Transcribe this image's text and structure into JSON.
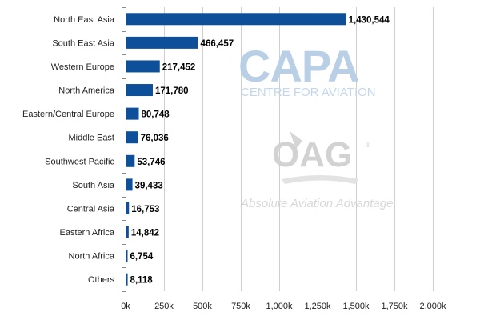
{
  "chart_data": {
    "type": "bar",
    "orientation": "horizontal",
    "categories": [
      "North East Asia",
      "South East Asia",
      "Western Europe",
      "North America",
      "Eastern/Central Europe",
      "Middle East",
      "Southwest Pacific",
      "South Asia",
      "Central Asia",
      "Eastern Africa",
      "North Africa",
      "Others"
    ],
    "values": [
      1430544,
      466457,
      217452,
      171780,
      80748,
      76036,
      53746,
      39433,
      16753,
      14842,
      6754,
      8118
    ],
    "value_labels": [
      "1,430,544",
      "466,457",
      "217,452",
      "171,780",
      "80,748",
      "76,036",
      "53,746",
      "39,433",
      "16,753",
      "14,842",
      "6,754",
      "8,118"
    ],
    "xlim": [
      0,
      2000000
    ],
    "xticks": [
      0,
      250000,
      500000,
      750000,
      1000000,
      1250000,
      1500000,
      1750000,
      2000000
    ],
    "xtick_labels": [
      "0k",
      "250k",
      "500k",
      "750k",
      "1,000k",
      "1,250k",
      "1,500k",
      "1,750k",
      "2,000k"
    ],
    "title": "",
    "xlabel": "",
    "ylabel": "",
    "grid": "vertical",
    "legend": "none",
    "bar_color": "#0e4f9a"
  },
  "watermarks": {
    "capa_logo": "CAPA",
    "capa_tagline": "CENTRE FOR AVIATION",
    "oag_logo": "OAG",
    "oag_tagline": "Absolute Aviation Advantage"
  }
}
